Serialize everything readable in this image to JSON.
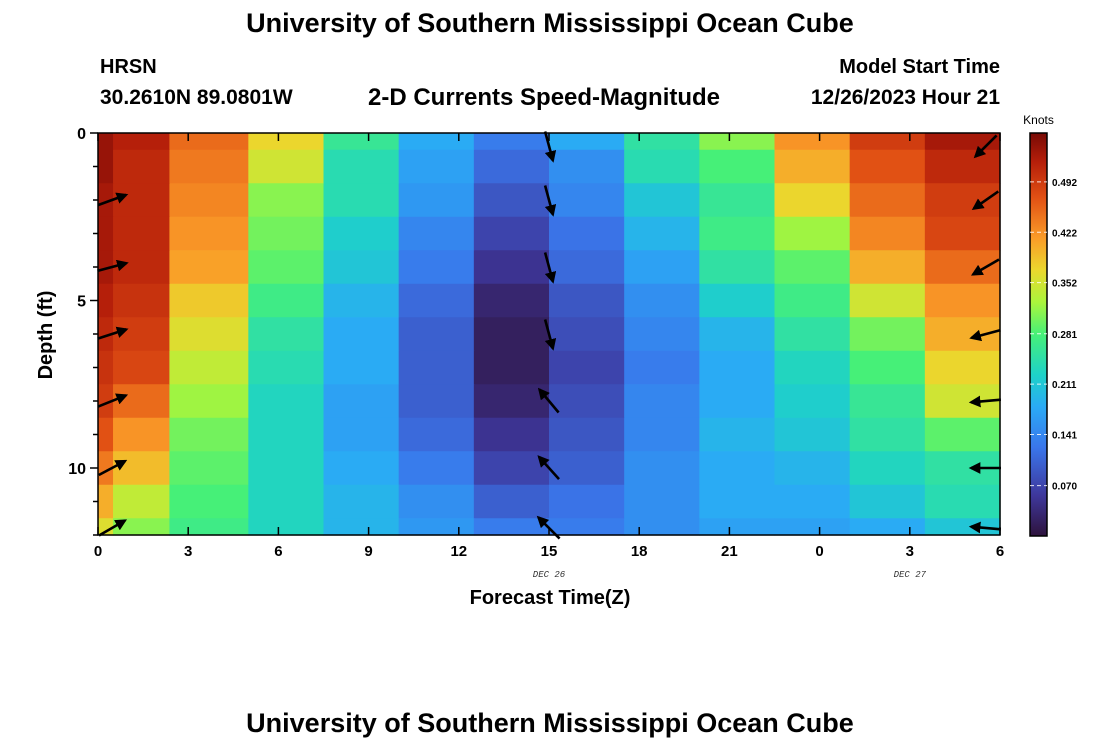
{
  "header": {
    "title": "University of Southern Mississippi Ocean Cube",
    "station_name": "HRSN",
    "station_coords": "30.2610N  89.0801W",
    "plot_title": "2-D Currents Speed-Magnitude",
    "model_label": "Model Start Time",
    "model_time": "12/26/2023 Hour 21"
  },
  "footer": {
    "title": "University of Southern Mississippi Ocean Cube"
  },
  "chart_data": {
    "type": "heatmap",
    "title": "2-D Currents Speed-Magnitude",
    "xlabel": "Forecast Time(Z)",
    "ylabel": "Depth (ft)",
    "x_ticks": [
      "0",
      "3",
      "6",
      "9",
      "12",
      "15",
      "18",
      "21",
      "0",
      "3",
      "6"
    ],
    "x_date_labels": [
      {
        "at_tick": 5,
        "text": "DEC 26"
      },
      {
        "at_tick": 9,
        "text": "DEC 27"
      }
    ],
    "y_ticks": [
      "0",
      "5",
      "10"
    ],
    "ylim": [
      0,
      12
    ],
    "colorbar": {
      "title": "Knots",
      "ticks": [
        "0.492",
        "0.422",
        "0.352",
        "0.281",
        "0.211",
        "0.141",
        "0.070"
      ],
      "range": [
        0.0,
        0.56
      ]
    },
    "columns_hours": [
      0,
      1,
      3.75,
      6.25,
      8.75,
      11.25,
      13.75,
      16.25,
      18.75,
      21.25,
      23.75,
      26.25,
      28.75
    ],
    "rows_depth_ft": [
      0,
      1,
      2,
      3,
      4,
      5,
      6,
      7,
      8,
      9,
      10,
      11,
      12
    ],
    "speed_knots": [
      [
        0.54,
        0.52,
        0.45,
        0.37,
        0.26,
        0.18,
        0.13,
        0.18,
        0.25,
        0.31,
        0.42,
        0.49,
        0.53
      ],
      [
        0.54,
        0.51,
        0.44,
        0.35,
        0.24,
        0.17,
        0.11,
        0.15,
        0.24,
        0.28,
        0.4,
        0.47,
        0.51
      ],
      [
        0.53,
        0.51,
        0.43,
        0.31,
        0.24,
        0.16,
        0.09,
        0.14,
        0.21,
        0.26,
        0.37,
        0.45,
        0.49
      ],
      [
        0.53,
        0.51,
        0.42,
        0.3,
        0.22,
        0.14,
        0.07,
        0.12,
        0.19,
        0.27,
        0.32,
        0.43,
        0.48
      ],
      [
        0.53,
        0.51,
        0.41,
        0.29,
        0.21,
        0.13,
        0.05,
        0.11,
        0.17,
        0.25,
        0.29,
        0.4,
        0.45
      ],
      [
        0.52,
        0.5,
        0.38,
        0.27,
        0.19,
        0.11,
        0.03,
        0.09,
        0.15,
        0.22,
        0.27,
        0.35,
        0.42
      ],
      [
        0.51,
        0.49,
        0.36,
        0.25,
        0.18,
        0.1,
        0.02,
        0.08,
        0.14,
        0.19,
        0.25,
        0.3,
        0.4
      ],
      [
        0.5,
        0.48,
        0.34,
        0.24,
        0.18,
        0.1,
        0.02,
        0.07,
        0.13,
        0.18,
        0.23,
        0.28,
        0.37
      ],
      [
        0.49,
        0.45,
        0.32,
        0.23,
        0.17,
        0.1,
        0.03,
        0.08,
        0.14,
        0.18,
        0.22,
        0.26,
        0.35
      ],
      [
        0.47,
        0.42,
        0.3,
        0.23,
        0.17,
        0.11,
        0.05,
        0.09,
        0.14,
        0.19,
        0.21,
        0.25,
        0.29
      ],
      [
        0.44,
        0.39,
        0.29,
        0.23,
        0.18,
        0.13,
        0.07,
        0.1,
        0.15,
        0.18,
        0.19,
        0.23,
        0.25
      ],
      [
        0.4,
        0.34,
        0.28,
        0.23,
        0.19,
        0.15,
        0.1,
        0.12,
        0.15,
        0.18,
        0.18,
        0.21,
        0.24
      ],
      [
        0.36,
        0.31,
        0.27,
        0.23,
        0.19,
        0.16,
        0.13,
        0.13,
        0.15,
        0.17,
        0.17,
        0.18,
        0.21
      ]
    ],
    "current_vectors": [
      {
        "hour": 0,
        "depth_ft": 2,
        "dir_deg": 70
      },
      {
        "hour": 0,
        "depth_ft": 4,
        "dir_deg": 75
      },
      {
        "hour": 0,
        "depth_ft": 6,
        "dir_deg": 72
      },
      {
        "hour": 0,
        "depth_ft": 8,
        "dir_deg": 68
      },
      {
        "hour": 0,
        "depth_ft": 10,
        "dir_deg": 62
      },
      {
        "hour": 0,
        "depth_ft": 12,
        "dir_deg": 60
      },
      {
        "hour": 15,
        "depth_ft": 0,
        "dir_deg": 165
      },
      {
        "hour": 15,
        "depth_ft": 2,
        "dir_deg": 165
      },
      {
        "hour": 15,
        "depth_ft": 4,
        "dir_deg": 165
      },
      {
        "hour": 15,
        "depth_ft": 6,
        "dir_deg": 165
      },
      {
        "hour": 15,
        "depth_ft": 8,
        "dir_deg": 320
      },
      {
        "hour": 15,
        "depth_ft": 10,
        "dir_deg": 318
      },
      {
        "hour": 15,
        "depth_ft": 12,
        "dir_deg": 315
      },
      {
        "hour": 30,
        "depth_ft": 0,
        "dir_deg": 225
      },
      {
        "hour": 30,
        "depth_ft": 2,
        "dir_deg": 235
      },
      {
        "hour": 30,
        "depth_ft": 4,
        "dir_deg": 240
      },
      {
        "hour": 30,
        "depth_ft": 6,
        "dir_deg": 255
      },
      {
        "hour": 30,
        "depth_ft": 8,
        "dir_deg": 265
      },
      {
        "hour": 30,
        "depth_ft": 10,
        "dir_deg": 270
      },
      {
        "hour": 30,
        "depth_ft": 12,
        "dir_deg": 275
      }
    ]
  }
}
